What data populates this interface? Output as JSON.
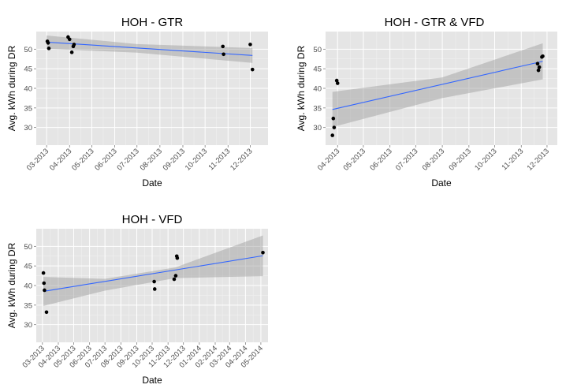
{
  "chart_data": [
    {
      "type": "scatter",
      "title": "HOH -   GTR",
      "xlabel": "Date",
      "ylabel": "Avg. kWh during DR",
      "xlim": [
        "2013-02-15",
        "2013-12-25"
      ],
      "ylim": [
        25.5,
        54.5
      ],
      "y_ticks": [
        30,
        35,
        40,
        45,
        50
      ],
      "x_ticks": [
        {
          "date": "2013-03-01",
          "label": "03-2013"
        },
        {
          "date": "2013-04-01",
          "label": "04-2013"
        },
        {
          "date": "2013-05-01",
          "label": "05-2013"
        },
        {
          "date": "2013-06-01",
          "label": "06-2013"
        },
        {
          "date": "2013-07-01",
          "label": "07-2013"
        },
        {
          "date": "2013-08-01",
          "label": "08-2013"
        },
        {
          "date": "2013-09-01",
          "label": "09-2013"
        },
        {
          "date": "2013-10-01",
          "label": "10-2013"
        },
        {
          "date": "2013-11-01",
          "label": "11-2013"
        },
        {
          "date": "2013-12-01",
          "label": "12-2013"
        }
      ],
      "points": [
        {
          "x": "2013-03-02",
          "y": 52.0
        },
        {
          "x": "2013-03-03",
          "y": 51.6
        },
        {
          "x": "2013-03-04",
          "y": 50.2
        },
        {
          "x": "2013-03-30",
          "y": 53.1
        },
        {
          "x": "2013-04-01",
          "y": 52.5
        },
        {
          "x": "2013-04-04",
          "y": 49.2
        },
        {
          "x": "2013-04-06",
          "y": 50.7
        },
        {
          "x": "2013-04-07",
          "y": 51.2
        },
        {
          "x": "2013-10-25",
          "y": 50.7
        },
        {
          "x": "2013-10-26",
          "y": 48.7
        },
        {
          "x": "2013-12-01",
          "y": 51.2
        },
        {
          "x": "2013-12-04",
          "y": 44.8
        }
      ],
      "fit": {
        "x": [
          "2013-03-01",
          "2013-12-04"
        ],
        "y": [
          51.8,
          48.4
        ]
      },
      "band": {
        "x": [
          "2013-03-01",
          "2013-07-01",
          "2013-12-04"
        ],
        "upper": [
          53.5,
          51.3,
          50.3
        ],
        "lower": [
          50.1,
          49.1,
          46.5
        ]
      },
      "grid": true
    },
    {
      "type": "scatter",
      "title": "HOH -   GTR & VFD",
      "xlabel": "Date",
      "ylabel": "Avg. kWh during DR",
      "xlim": [
        "2013-03-18",
        "2013-12-13"
      ],
      "ylim": [
        25.5,
        54.5
      ],
      "y_ticks": [
        30,
        35,
        40,
        45,
        50
      ],
      "x_ticks": [
        {
          "date": "2013-04-01",
          "label": "04-2013"
        },
        {
          "date": "2013-05-01",
          "label": "05-2013"
        },
        {
          "date": "2013-06-01",
          "label": "06-2013"
        },
        {
          "date": "2013-07-01",
          "label": "07-2013"
        },
        {
          "date": "2013-08-01",
          "label": "08-2013"
        },
        {
          "date": "2013-09-01",
          "label": "09-2013"
        },
        {
          "date": "2013-10-01",
          "label": "10-2013"
        },
        {
          "date": "2013-11-01",
          "label": "11-2013"
        },
        {
          "date": "2013-12-01",
          "label": "12-2013"
        }
      ],
      "points": [
        {
          "x": "2013-03-26",
          "y": 28.0
        },
        {
          "x": "2013-03-27",
          "y": 32.3
        },
        {
          "x": "2013-03-28",
          "y": 30.0
        },
        {
          "x": "2013-03-31",
          "y": 42.0
        },
        {
          "x": "2013-04-01",
          "y": 41.3
        },
        {
          "x": "2013-11-20",
          "y": 46.3
        },
        {
          "x": "2013-11-21",
          "y": 44.6
        },
        {
          "x": "2013-11-22",
          "y": 45.4
        },
        {
          "x": "2013-11-25",
          "y": 48.0
        },
        {
          "x": "2013-11-26",
          "y": 48.2
        }
      ],
      "fit": {
        "x": [
          "2013-03-26",
          "2013-11-26"
        ],
        "y": [
          34.6,
          46.9
        ]
      },
      "band": {
        "x": [
          "2013-03-26",
          "2013-08-01",
          "2013-11-26"
        ],
        "upper": [
          39.1,
          42.8,
          51.5
        ],
        "lower": [
          30.1,
          37.5,
          42.3
        ]
      },
      "grid": true
    },
    {
      "type": "scatter",
      "title": "HOH -   VFD",
      "xlabel": "Date",
      "ylabel": "Avg. kWh during DR",
      "xlim": [
        "2013-02-17",
        "2014-05-15"
      ],
      "ylim": [
        25.5,
        54.5
      ],
      "y_ticks": [
        30,
        35,
        40,
        45,
        50
      ],
      "x_ticks": [
        {
          "date": "2013-03-01",
          "label": "03-2013"
        },
        {
          "date": "2013-04-01",
          "label": "04-2013"
        },
        {
          "date": "2013-05-01",
          "label": "05-2013"
        },
        {
          "date": "2013-06-01",
          "label": "06-2013"
        },
        {
          "date": "2013-07-01",
          "label": "07-2013"
        },
        {
          "date": "2013-08-01",
          "label": "08-2013"
        },
        {
          "date": "2013-09-01",
          "label": "09-2013"
        },
        {
          "date": "2013-10-01",
          "label": "10-2013"
        },
        {
          "date": "2013-11-01",
          "label": "11-2013"
        },
        {
          "date": "2013-12-01",
          "label": "12-2013"
        },
        {
          "date": "2014-01-01",
          "label": "01-2014"
        },
        {
          "date": "2014-02-01",
          "label": "02-2014"
        },
        {
          "date": "2014-03-01",
          "label": "03-2014"
        },
        {
          "date": "2014-04-01",
          "label": "04-2014"
        },
        {
          "date": "2014-05-01",
          "label": "05-2014"
        }
      ],
      "points": [
        {
          "x": "2013-03-03",
          "y": 43.2
        },
        {
          "x": "2013-03-04",
          "y": 40.6
        },
        {
          "x": "2013-03-05",
          "y": 38.8
        },
        {
          "x": "2013-03-09",
          "y": 33.2
        },
        {
          "x": "2013-10-05",
          "y": 41.0
        },
        {
          "x": "2013-10-06",
          "y": 39.1
        },
        {
          "x": "2013-11-13",
          "y": 41.6
        },
        {
          "x": "2013-11-16",
          "y": 42.5
        },
        {
          "x": "2013-11-18",
          "y": 47.5
        },
        {
          "x": "2013-11-19",
          "y": 47.0
        },
        {
          "x": "2014-05-05",
          "y": 48.4
        }
      ],
      "fit": {
        "x": [
          "2013-03-03",
          "2014-05-05"
        ],
        "y": [
          38.5,
          47.6
        ]
      },
      "band": {
        "x": [
          "2013-03-03",
          "2013-07-01",
          "2013-11-15",
          "2014-05-05"
        ],
        "upper": [
          42.2,
          41.7,
          44.6,
          52.8
        ],
        "lower": [
          34.8,
          38.7,
          41.9,
          42.4
        ]
      },
      "grid": true
    }
  ]
}
